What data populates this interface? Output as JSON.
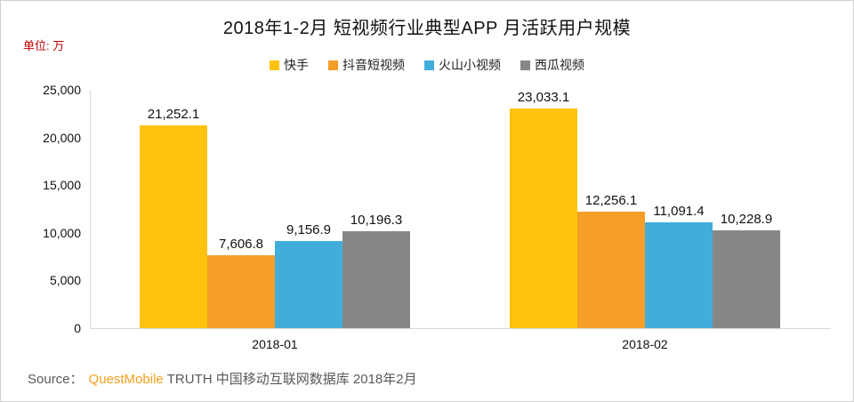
{
  "title": "2018年1-2月 短视频行业典型APP 月活跃用户规模",
  "unit_label": "单位: 万",
  "source": {
    "prefix": "Source：",
    "brand": "QuestMobile",
    "rest": "TRUTH 中国移动互联网数据库 2018年2月"
  },
  "colors": {
    "accent_red": "#c00000",
    "brand_orange": "#f7a01e",
    "axis_gray": "#d9d9d9"
  },
  "chart_data": {
    "type": "bar",
    "categories": [
      "2018-01",
      "2018-02"
    ],
    "series": [
      {
        "name": "快手",
        "color": "#ffc20e",
        "values": [
          21252.1,
          23033.1
        ]
      },
      {
        "name": "抖音短视频",
        "color": "#f69e27",
        "values": [
          7606.8,
          12256.1
        ]
      },
      {
        "name": "火山小视频",
        "color": "#41addb",
        "values": [
          9156.9,
          11091.4
        ]
      },
      {
        "name": "西瓜视频",
        "color": "#878787",
        "values": [
          10196.3,
          10228.9
        ]
      }
    ],
    "ylim": [
      0,
      25000
    ],
    "ytick_step": 5000,
    "grid": false,
    "legend_position": "top",
    "data_labels_shown": true
  }
}
